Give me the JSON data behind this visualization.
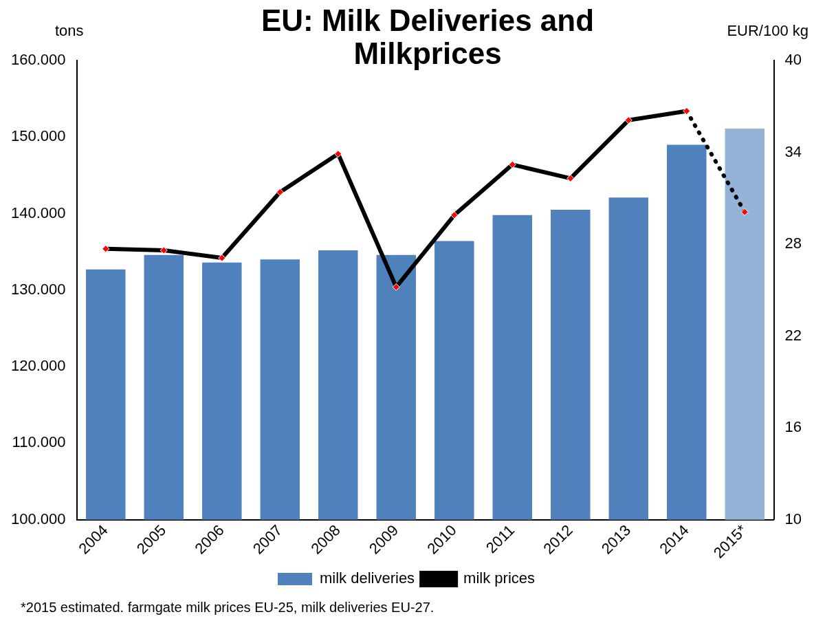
{
  "chart_data": {
    "type": "bar",
    "title": "EU: Milk Deliveries and Milkprices",
    "ylabel": "tons",
    "y2label": "EUR/100 kg",
    "categories": [
      "2004",
      "2005",
      "2006",
      "2007",
      "2008",
      "2009",
      "2010",
      "2011",
      "2012",
      "2013",
      "2014",
      "2015*"
    ],
    "series": [
      {
        "name": "milk deliveries",
        "color": "#4f81bd",
        "colors": [
          "#4f81bd",
          "#4f81bd",
          "#4f81bd",
          "#4f81bd",
          "#4f81bd",
          "#4f81bd",
          "#4f81bd",
          "#4f81bd",
          "#4f81bd",
          "#4f81bd",
          "#4f81bd",
          "#95b3d7"
        ],
        "values": [
          132700,
          134600,
          133600,
          134000,
          135200,
          134600,
          136400,
          139800,
          140500,
          142100,
          149000,
          151100
        ]
      },
      {
        "name": "milk prices",
        "type": "line",
        "axis": "y2",
        "color": "#000000",
        "colors": [
          "#ff0000",
          "#ff0000",
          "#ff0000",
          "#ff0000",
          "#ff0000",
          "#ff0000",
          "#ff0000",
          "#ff0000",
          "#ff0000",
          "#ff0000",
          "#ff0000",
          "#ff0000"
        ],
        "line_style": "solid",
        "values": [
          27.7,
          27.6,
          27.1,
          31.4,
          33.9,
          25.2,
          29.9,
          33.2,
          32.3,
          36.1,
          36.7,
          null
        ]
      },
      {
        "type": "line",
        "axis": "y2",
        "color": "#000000",
        "colors": [
          "#ff0000",
          "#ff0000",
          "#ff0000",
          "#ff0000",
          "#ff0000",
          "#ff0000",
          "#ff0000",
          "#ff0000",
          "#ff0000",
          "#ff0000",
          "#ff0000",
          "#ff0000"
        ],
        "line_style": "dotted",
        "values": [
          null,
          null,
          null,
          null,
          null,
          null,
          null,
          null,
          null,
          null,
          36.7,
          30.1
        ]
      }
    ],
    "ylim": [
      100000,
      160000
    ],
    "yticks": [
      {
        "value": 100000,
        "label": "100.000"
      },
      {
        "value": 110000,
        "label": "110.000"
      },
      {
        "value": 120000,
        "label": "120.000"
      },
      {
        "value": 130000,
        "label": "130.000"
      },
      {
        "value": 140000,
        "label": "140.000"
      },
      {
        "value": 150000,
        "label": "150.000"
      },
      {
        "value": 160000,
        "label": "160.000"
      }
    ],
    "y2lim": [
      10,
      40
    ],
    "y2ticks": [
      10,
      16,
      22,
      28,
      34,
      40
    ],
    "marker": "diamond",
    "grid": false,
    "legend": "bottom",
    "annotations": [
      "*2015 estimated. farmgate milk prices EU-25, milk deliveries EU-27."
    ]
  }
}
